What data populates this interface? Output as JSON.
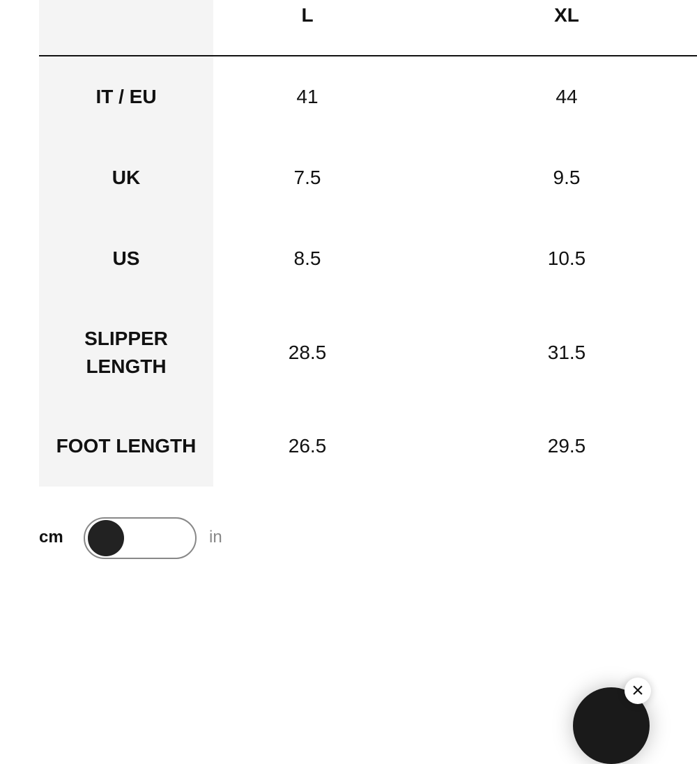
{
  "header": {
    "sizes": [
      "L",
      "XL"
    ]
  },
  "rows": [
    {
      "label": "IT / EU",
      "values": [
        "41",
        "44"
      ]
    },
    {
      "label": "UK",
      "values": [
        "7.5",
        "9.5"
      ]
    },
    {
      "label": "US",
      "values": [
        "8.5",
        "10.5"
      ]
    },
    {
      "label_line1": "SLIPPER",
      "label_line2": "LENGTH",
      "values": [
        "28.5",
        "31.5"
      ]
    },
    {
      "label": "FOOT LENGTH",
      "values": [
        "26.5",
        "29.5"
      ]
    }
  ],
  "unit_toggle": {
    "left_label": "cm",
    "right_label": "in",
    "selected": "cm"
  },
  "chat_widget": {
    "close_icon": "×"
  }
}
